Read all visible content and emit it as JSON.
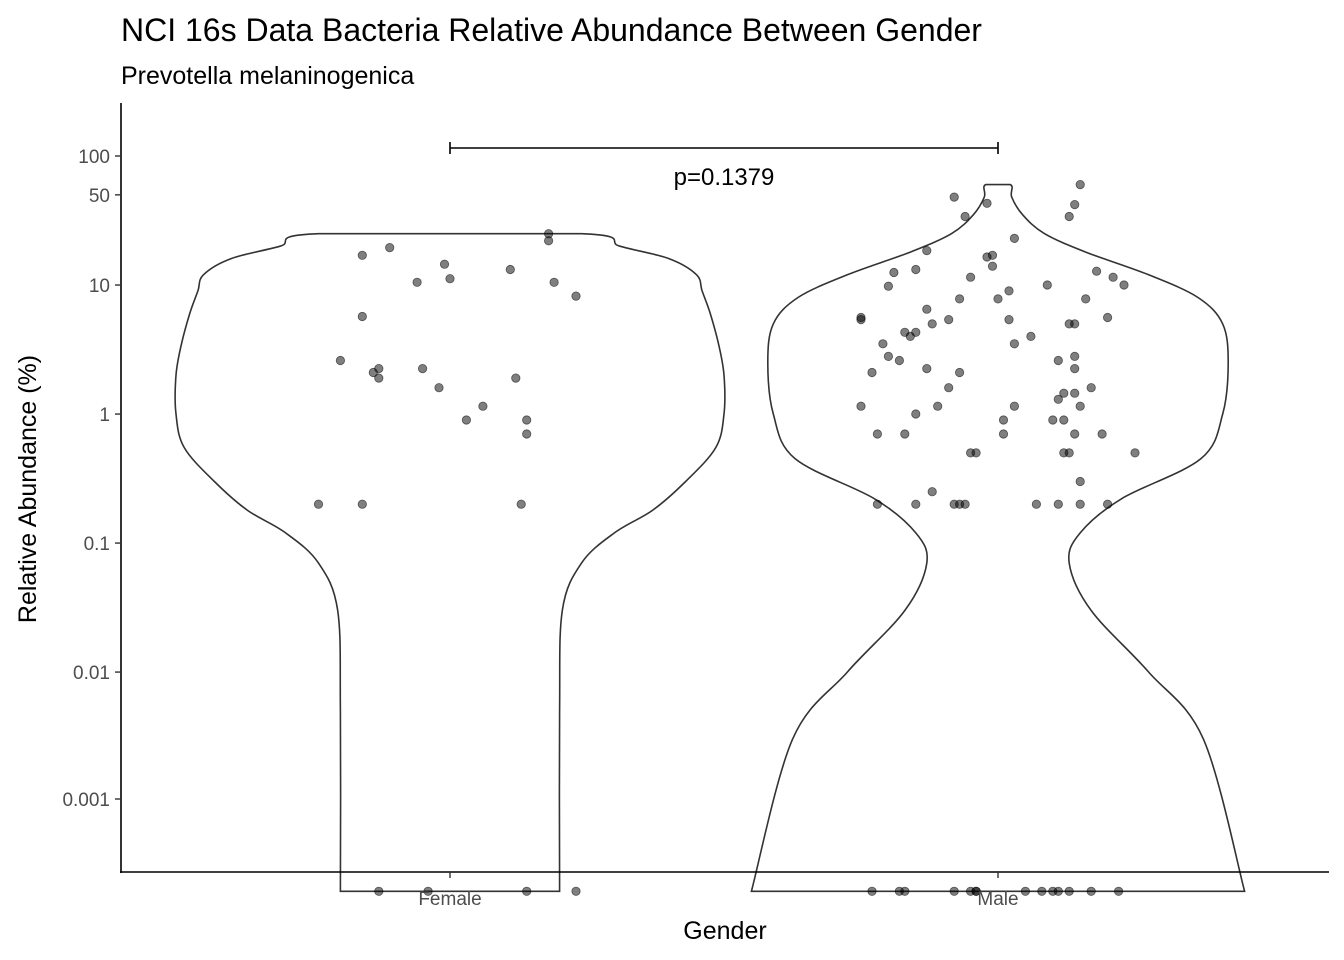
{
  "chart_data": {
    "type": "violin",
    "title": "NCI 16s Data Bacteria Relative Abundance Between Gender",
    "subtitle": "Prevotella melaninogenica",
    "xlabel": "Gender",
    "ylabel": "Relative Abundance (%)",
    "categories": [
      "Female",
      "Male"
    ],
    "y_scale": "pseudo-log",
    "y_ticks": [
      {
        "label": "100",
        "value": 100
      },
      {
        "label": "50",
        "value": 50
      },
      {
        "label": "10",
        "value": 10
      },
      {
        "label": "1",
        "value": 1
      },
      {
        "label": "0.1",
        "value": 0.1
      },
      {
        "label": "0.01",
        "value": 0.01
      },
      {
        "label": "0.001",
        "value": 0.001
      }
    ],
    "ylim": [
      0,
      150
    ],
    "grid": false,
    "legend": "none",
    "point_color": "#000000",
    "violin_fill": "#ffffff",
    "violin_outline": "#333333",
    "annotation": {
      "text": "p=0.1379",
      "from": "Female",
      "to": "Male"
    },
    "violins": [
      {
        "category": "Female",
        "min": 0,
        "max": 25,
        "profile": [
          [
            0,
            0.4
          ],
          [
            0.005,
            0.4
          ],
          [
            0.03,
            0.41
          ],
          [
            0.07,
            0.48
          ],
          [
            0.12,
            0.6
          ],
          [
            0.18,
            0.74
          ],
          [
            0.3,
            0.86
          ],
          [
            0.55,
            0.97
          ],
          [
            1,
            1.0
          ],
          [
            2,
            1.0
          ],
          [
            3.5,
            0.98
          ],
          [
            6,
            0.95
          ],
          [
            9,
            0.92
          ],
          [
            12,
            0.9
          ],
          [
            16,
            0.8
          ],
          [
            20,
            0.62
          ],
          [
            25,
            0.48
          ]
        ]
      },
      {
        "category": "Male",
        "min": 0,
        "max": 60,
        "profile": [
          [
            0,
            0.9
          ],
          [
            0.003,
            0.75
          ],
          [
            0.01,
            0.55
          ],
          [
            0.03,
            0.34
          ],
          [
            0.07,
            0.26
          ],
          [
            0.12,
            0.3
          ],
          [
            0.22,
            0.45
          ],
          [
            0.45,
            0.74
          ],
          [
            1,
            0.82
          ],
          [
            2.5,
            0.84
          ],
          [
            5,
            0.82
          ],
          [
            8,
            0.73
          ],
          [
            12,
            0.55
          ],
          [
            18,
            0.32
          ],
          [
            25,
            0.17
          ],
          [
            35,
            0.09
          ],
          [
            48,
            0.05
          ],
          [
            60,
            0.045
          ]
        ]
      }
    ],
    "points": [
      {
        "category": "Female",
        "values": [
          {
            "dx": -0.13,
            "y": 0
          },
          {
            "dx": -0.04,
            "y": 0
          },
          {
            "dx": 0.14,
            "y": 0
          },
          {
            "dx": 0.23,
            "y": 0
          },
          {
            "dx": -0.24,
            "y": 0.2
          },
          {
            "dx": -0.16,
            "y": 0.2
          },
          {
            "dx": 0.13,
            "y": 0.2
          },
          {
            "dx": 0.14,
            "y": 0.7
          },
          {
            "dx": 0.03,
            "y": 0.9
          },
          {
            "dx": 0.14,
            "y": 0.9
          },
          {
            "dx": 0.06,
            "y": 1.15
          },
          {
            "dx": -0.02,
            "y": 1.6
          },
          {
            "dx": -0.13,
            "y": 1.9
          },
          {
            "dx": 0.12,
            "y": 1.9
          },
          {
            "dx": -0.14,
            "y": 2.1
          },
          {
            "dx": -0.13,
            "y": 2.25
          },
          {
            "dx": -0.05,
            "y": 2.25
          },
          {
            "dx": -0.2,
            "y": 2.6
          },
          {
            "dx": -0.16,
            "y": 5.7
          },
          {
            "dx": 0.23,
            "y": 8.2
          },
          {
            "dx": -0.06,
            "y": 10.5
          },
          {
            "dx": 0.19,
            "y": 10.5
          },
          {
            "dx": 0,
            "y": 11.2
          },
          {
            "dx": 0.11,
            "y": 13.2
          },
          {
            "dx": -0.01,
            "y": 14.5
          },
          {
            "dx": -0.16,
            "y": 17
          },
          {
            "dx": -0.11,
            "y": 19.5
          },
          {
            "dx": 0.18,
            "y": 22
          },
          {
            "dx": 0.18,
            "y": 25
          }
        ]
      },
      {
        "category": "Male",
        "values": [
          {
            "dx": -0.23,
            "y": 0
          },
          {
            "dx": -0.18,
            "y": 0
          },
          {
            "dx": -0.17,
            "y": 0
          },
          {
            "dx": -0.08,
            "y": 0
          },
          {
            "dx": -0.05,
            "y": 0
          },
          {
            "dx": -0.04,
            "y": 0
          },
          {
            "dx": -0.04,
            "y": 0
          },
          {
            "dx": 0.05,
            "y": 0
          },
          {
            "dx": 0.08,
            "y": 0
          },
          {
            "dx": 0.1,
            "y": 0
          },
          {
            "dx": 0.11,
            "y": 0
          },
          {
            "dx": 0.13,
            "y": 0
          },
          {
            "dx": 0.17,
            "y": 0
          },
          {
            "dx": 0.22,
            "y": 0
          },
          {
            "dx": -0.22,
            "y": 0.2
          },
          {
            "dx": -0.15,
            "y": 0.2
          },
          {
            "dx": -0.08,
            "y": 0.2
          },
          {
            "dx": -0.07,
            "y": 0.2
          },
          {
            "dx": -0.06,
            "y": 0.2
          },
          {
            "dx": 0.07,
            "y": 0.2
          },
          {
            "dx": 0.11,
            "y": 0.2
          },
          {
            "dx": 0.15,
            "y": 0.2
          },
          {
            "dx": 0.2,
            "y": 0.2
          },
          {
            "dx": -0.12,
            "y": 0.25
          },
          {
            "dx": 0.15,
            "y": 0.3
          },
          {
            "dx": -0.05,
            "y": 0.5
          },
          {
            "dx": -0.04,
            "y": 0.5
          },
          {
            "dx": 0.12,
            "y": 0.5
          },
          {
            "dx": 0.13,
            "y": 0.5
          },
          {
            "dx": 0.25,
            "y": 0.5
          },
          {
            "dx": -0.22,
            "y": 0.7
          },
          {
            "dx": -0.17,
            "y": 0.7
          },
          {
            "dx": 0.01,
            "y": 0.7
          },
          {
            "dx": 0.14,
            "y": 0.7
          },
          {
            "dx": 0.19,
            "y": 0.7
          },
          {
            "dx": 0.01,
            "y": 0.9
          },
          {
            "dx": 0.1,
            "y": 0.9
          },
          {
            "dx": 0.12,
            "y": 0.9
          },
          {
            "dx": -0.15,
            "y": 1.0
          },
          {
            "dx": -0.25,
            "y": 1.15
          },
          {
            "dx": -0.11,
            "y": 1.15
          },
          {
            "dx": 0.03,
            "y": 1.15
          },
          {
            "dx": 0.15,
            "y": 1.15
          },
          {
            "dx": 0.11,
            "y": 1.3
          },
          {
            "dx": 0.12,
            "y": 1.45
          },
          {
            "dx": 0.14,
            "y": 1.45
          },
          {
            "dx": -0.09,
            "y": 1.6
          },
          {
            "dx": 0.17,
            "y": 1.6
          },
          {
            "dx": -0.23,
            "y": 2.1
          },
          {
            "dx": -0.07,
            "y": 2.1
          },
          {
            "dx": -0.13,
            "y": 2.25
          },
          {
            "dx": 0.14,
            "y": 2.25
          },
          {
            "dx": -0.18,
            "y": 2.6
          },
          {
            "dx": 0.11,
            "y": 2.6
          },
          {
            "dx": -0.2,
            "y": 2.8
          },
          {
            "dx": 0.14,
            "y": 2.8
          },
          {
            "dx": -0.21,
            "y": 3.5
          },
          {
            "dx": 0.03,
            "y": 3.5
          },
          {
            "dx": -0.16,
            "y": 4.0
          },
          {
            "dx": 0.06,
            "y": 4.0
          },
          {
            "dx": -0.17,
            "y": 4.3
          },
          {
            "dx": -0.15,
            "y": 4.3
          },
          {
            "dx": -0.12,
            "y": 5.0
          },
          {
            "dx": 0.13,
            "y": 5.0
          },
          {
            "dx": 0.14,
            "y": 5.0
          },
          {
            "dx": -0.25,
            "y": 5.6
          },
          {
            "dx": -0.25,
            "y": 5.4
          },
          {
            "dx": -0.09,
            "y": 5.4
          },
          {
            "dx": 0.02,
            "y": 5.4
          },
          {
            "dx": 0.2,
            "y": 5.6
          },
          {
            "dx": -0.13,
            "y": 6.5
          },
          {
            "dx": -0.07,
            "y": 7.8
          },
          {
            "dx": 0,
            "y": 7.8
          },
          {
            "dx": 0.16,
            "y": 7.8
          },
          {
            "dx": 0.02,
            "y": 9.0
          },
          {
            "dx": -0.2,
            "y": 9.8
          },
          {
            "dx": 0.09,
            "y": 10
          },
          {
            "dx": 0.23,
            "y": 10
          },
          {
            "dx": -0.05,
            "y": 11.5
          },
          {
            "dx": 0.21,
            "y": 11.5
          },
          {
            "dx": -0.19,
            "y": 12.5
          },
          {
            "dx": 0.18,
            "y": 12.8
          },
          {
            "dx": -0.15,
            "y": 13.2
          },
          {
            "dx": -0.01,
            "y": 14
          },
          {
            "dx": -0.02,
            "y": 16.5
          },
          {
            "dx": -0.01,
            "y": 17
          },
          {
            "dx": -0.13,
            "y": 18.5
          },
          {
            "dx": 0.03,
            "y": 23
          },
          {
            "dx": -0.06,
            "y": 34
          },
          {
            "dx": 0.13,
            "y": 34
          },
          {
            "dx": 0.14,
            "y": 42
          },
          {
            "dx": -0.02,
            "y": 43
          },
          {
            "dx": -0.08,
            "y": 48
          },
          {
            "dx": 0.15,
            "y": 60
          }
        ]
      }
    ]
  }
}
